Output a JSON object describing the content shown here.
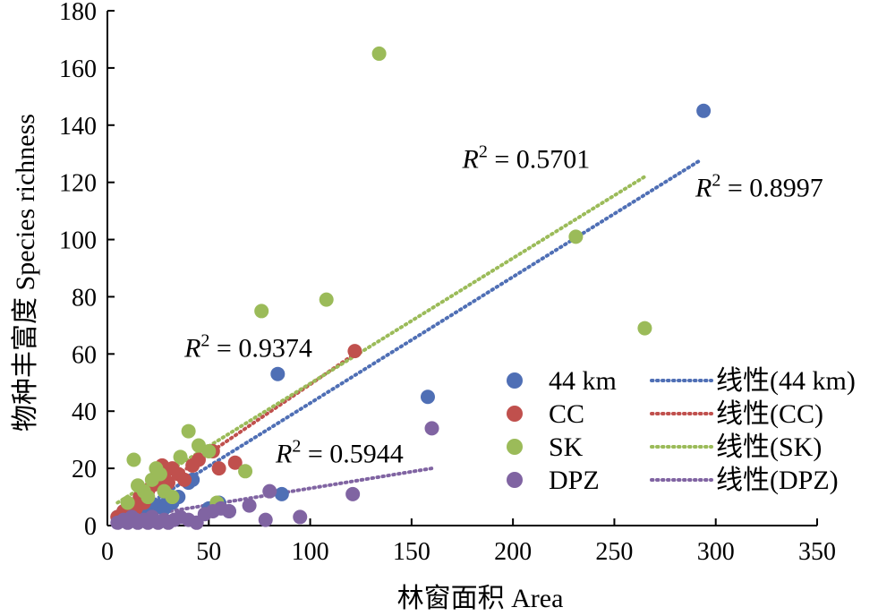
{
  "chart_data": {
    "type": "scatter",
    "xlabel": "林窗面积 Area",
    "ylabel": "物种丰富度 Species richness",
    "xlim": [
      0,
      350
    ],
    "ylim": [
      0,
      180
    ],
    "x_ticks": [
      0,
      50,
      100,
      150,
      200,
      250,
      300,
      350
    ],
    "y_ticks": [
      0,
      20,
      40,
      60,
      80,
      100,
      120,
      140,
      160,
      180
    ],
    "grid": false,
    "legend_position": "bottom-right",
    "series": [
      {
        "name": "44 km",
        "trend_name": "线性(44 km)",
        "color": "#4f6fb5",
        "points": [
          [
            5,
            3
          ],
          [
            8,
            5
          ],
          [
            10,
            2
          ],
          [
            12,
            4
          ],
          [
            15,
            6
          ],
          [
            18,
            3
          ],
          [
            20,
            8
          ],
          [
            22,
            5
          ],
          [
            25,
            7
          ],
          [
            28,
            6
          ],
          [
            30,
            9
          ],
          [
            32,
            8
          ],
          [
            35,
            10
          ],
          [
            40,
            15
          ],
          [
            42,
            16
          ],
          [
            50,
            6
          ],
          [
            55,
            8
          ],
          [
            60,
            5
          ],
          [
            84,
            53
          ],
          [
            86,
            11
          ],
          [
            158,
            45
          ],
          [
            294,
            145
          ]
        ],
        "trendline": [
          [
            3,
            0
          ],
          [
            293,
            128
          ]
        ],
        "r2_value": "0.8997"
      },
      {
        "name": "CC",
        "trend_name": "线性(CC)",
        "color": "#c0504d",
        "points": [
          [
            5,
            3
          ],
          [
            8,
            5
          ],
          [
            10,
            4
          ],
          [
            12,
            7
          ],
          [
            14,
            6
          ],
          [
            16,
            10
          ],
          [
            18,
            8
          ],
          [
            20,
            12
          ],
          [
            22,
            14
          ],
          [
            25,
            16
          ],
          [
            27,
            21
          ],
          [
            28,
            18
          ],
          [
            30,
            15
          ],
          [
            32,
            20
          ],
          [
            35,
            18
          ],
          [
            38,
            16
          ],
          [
            42,
            21
          ],
          [
            45,
            23
          ],
          [
            52,
            26
          ],
          [
            55,
            20
          ],
          [
            63,
            22
          ],
          [
            122,
            61
          ]
        ],
        "trendline": [
          [
            4,
            3
          ],
          [
            122,
            60
          ]
        ],
        "r2_value": "0.9374"
      },
      {
        "name": "SK",
        "trend_name": "线性(SK)",
        "color": "#9bbb59",
        "points": [
          [
            10,
            8
          ],
          [
            13,
            23
          ],
          [
            15,
            14
          ],
          [
            18,
            12
          ],
          [
            20,
            10
          ],
          [
            22,
            16
          ],
          [
            24,
            20
          ],
          [
            26,
            18
          ],
          [
            28,
            12
          ],
          [
            32,
            10
          ],
          [
            36,
            24
          ],
          [
            40,
            33
          ],
          [
            45,
            28
          ],
          [
            50,
            26
          ],
          [
            54,
            8
          ],
          [
            68,
            19
          ],
          [
            76,
            75
          ],
          [
            108,
            79
          ],
          [
            134,
            165
          ],
          [
            231,
            101
          ],
          [
            265,
            69
          ]
        ],
        "trendline": [
          [
            5,
            8
          ],
          [
            265,
            122
          ]
        ],
        "r2_value": "0.5701"
      },
      {
        "name": "DPZ",
        "trend_name": "线性(DPZ)",
        "color": "#8064a2",
        "points": [
          [
            5,
            1
          ],
          [
            8,
            2
          ],
          [
            10,
            1
          ],
          [
            12,
            3
          ],
          [
            14,
            2
          ],
          [
            15,
            1
          ],
          [
            18,
            2
          ],
          [
            20,
            1
          ],
          [
            22,
            3
          ],
          [
            25,
            1
          ],
          [
            28,
            2
          ],
          [
            30,
            1
          ],
          [
            33,
            2
          ],
          [
            36,
            3
          ],
          [
            40,
            2
          ],
          [
            44,
            1
          ],
          [
            48,
            4
          ],
          [
            52,
            5
          ],
          [
            56,
            6
          ],
          [
            60,
            5
          ],
          [
            70,
            7
          ],
          [
            78,
            2
          ],
          [
            80,
            12
          ],
          [
            95,
            3
          ],
          [
            121,
            11
          ],
          [
            160,
            34
          ]
        ],
        "trendline": [
          [
            5,
            2
          ],
          [
            160,
            20
          ]
        ],
        "r2_value": "0.5944"
      }
    ],
    "annotations": [
      {
        "label": "R",
        "superscript": "2",
        "equals": " = ",
        "value": "0.5701",
        "x": 175,
        "y": 125
      },
      {
        "label": "R",
        "superscript": "2",
        "equals": " = ",
        "value": "0.8997",
        "x": 290,
        "y": 115
      },
      {
        "label": "R",
        "superscript": "2",
        "equals": " = ",
        "value": "0.9374",
        "x": 38,
        "y": 59
      },
      {
        "label": "R",
        "superscript": "2",
        "equals": " = ",
        "value": "0.5944",
        "x": 83,
        "y": 22
      }
    ]
  }
}
